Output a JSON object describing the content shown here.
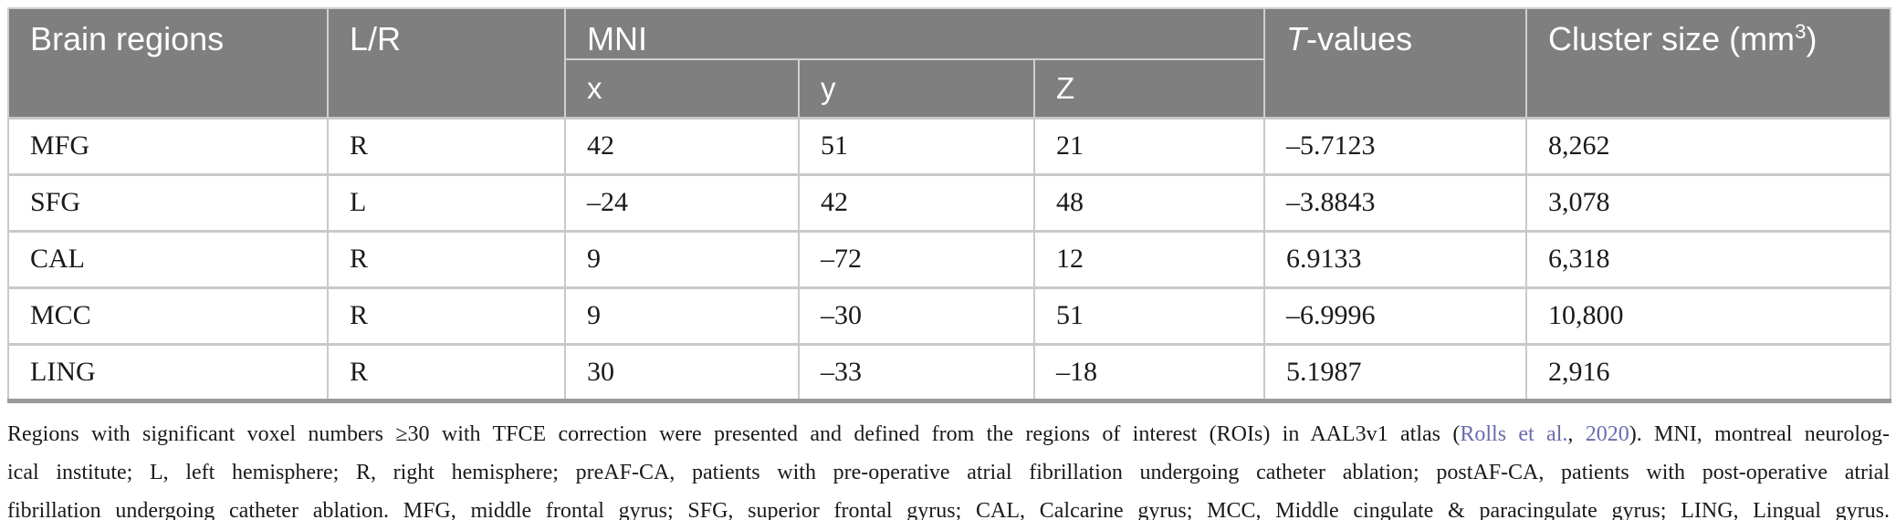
{
  "table": {
    "headers": {
      "brain_regions": "Brain regions",
      "lr": "L/R",
      "mni": "MNI",
      "x": "x",
      "y": "y",
      "z": "Z",
      "t_italic": "T",
      "t_rest": "-values",
      "cluster_pre": "Cluster size (mm",
      "cluster_sup": "3",
      "cluster_post": ")"
    },
    "rows": [
      {
        "region": "MFG",
        "lr": "R",
        "x": "42",
        "y": "51",
        "z": "21",
        "t": "–5.7123",
        "cluster": "8,262"
      },
      {
        "region": "SFG",
        "lr": "L",
        "x": "–24",
        "y": "42",
        "z": "48",
        "t": "–3.8843",
        "cluster": "3,078"
      },
      {
        "region": "CAL",
        "lr": "R",
        "x": "9",
        "y": "–72",
        "z": "12",
        "t": "6.9133",
        "cluster": "6,318"
      },
      {
        "region": "MCC",
        "lr": "R",
        "x": "9",
        "y": "–30",
        "z": "51",
        "t": "–6.9996",
        "cluster": "10,800"
      },
      {
        "region": "LING",
        "lr": "R",
        "x": "30",
        "y": "–33",
        "z": "–18",
        "t": "5.1987",
        "cluster": "2,916"
      }
    ]
  },
  "footnote": {
    "line1_pre": "Regions with significant voxel numbers ≥30 with TFCE correction were presented and defined from the regions of interest (ROIs) in AAL3v1 atlas (",
    "citation_authors": "Rolls et al.",
    "citation_sep": ", ",
    "citation_year": "2020",
    "line1_post": "). MNI, montreal neurolog-",
    "line2": "ical institute; L, left hemisphere; R, right hemisphere; preAF-CA, patients with pre-operative atrial fibrillation undergoing catheter ablation; postAF-CA, patients with post-operative atrial",
    "line3": "fibrillation undergoing catheter ablation. MFG, middle frontal gyrus; SFG, superior frontal gyrus; CAL, Calcarine gyrus; MCC, Middle cingulate & paracingulate gyrus; LING, Lingual gyrus."
  },
  "colors": {
    "header_bg": "#7f7f7f",
    "header_text": "#ffffff",
    "border_light": "#c9c9c9",
    "border_dark": "#9a9a9a",
    "body_text": "#1a1a1a",
    "link": "#6b6bb0"
  }
}
